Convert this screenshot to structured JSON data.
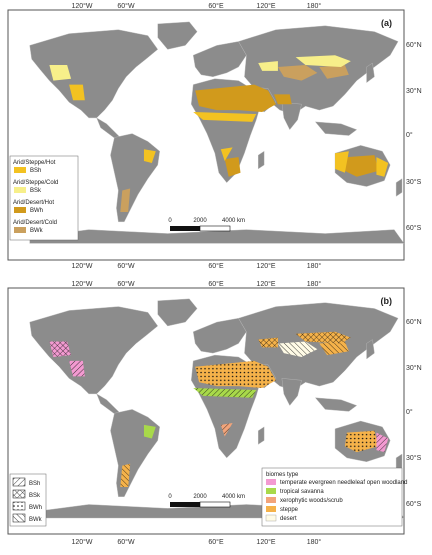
{
  "panels": [
    {
      "label": "(a)",
      "top_lon_labels": [
        "120°W",
        "60°W",
        "60°E",
        "120°E",
        "180°"
      ],
      "bottom_lon_labels": [
        "120°W",
        "60°W",
        "60°E",
        "120°E",
        "180°"
      ],
      "lat_labels": [
        "60°N",
        "30°N",
        "0°",
        "30°S",
        "60°S"
      ],
      "legend": [
        {
          "group": "Arid/Steppe/Hot",
          "code": "BSh",
          "color": "#f3c221"
        },
        {
          "group": "Arid/Steppe/Cold",
          "code": "BSk",
          "color": "#f7ef8a"
        },
        {
          "group": "Arid/Desert/Hot",
          "code": "BWh",
          "color": "#d19a1c"
        },
        {
          "group": "Arid/Desert/Cold",
          "code": "BWk",
          "color": "#caa05e"
        }
      ],
      "scalebar": {
        "labels": [
          "0",
          "2000",
          "4000 km"
        ]
      }
    },
    {
      "label": "(b)",
      "top_lon_labels": [
        "120°W",
        "60°W",
        "60°E",
        "120°E",
        "180°"
      ],
      "bottom_lon_labels": [
        "120°W",
        "60°W",
        "60°E",
        "120°E",
        "180°"
      ],
      "lat_labels": [
        "60°N",
        "30°N",
        "0°",
        "30°S",
        "60°S"
      ],
      "pattern_legend": [
        {
          "code": "BSh",
          "pattern": "diagonal-hatch"
        },
        {
          "code": "BSk",
          "pattern": "cross-hatch"
        },
        {
          "code": "BWh",
          "pattern": "dots"
        },
        {
          "code": "BWk",
          "pattern": "backslash-hatch"
        }
      ],
      "biome_legend": {
        "title": "biomes type",
        "items": [
          {
            "label": "temperate evergreen needleleaf open woodland",
            "color": "#f39ad1"
          },
          {
            "label": "tropical savanna",
            "color": "#a8d94a"
          },
          {
            "label": "xerophytic woods/scrub",
            "color": "#f2a47a"
          },
          {
            "label": "steppe",
            "color": "#f5b24a"
          },
          {
            "label": "desert",
            "color": "#fffbe6"
          }
        ]
      },
      "scalebar": {
        "labels": [
          "0",
          "2000",
          "4000 km"
        ]
      }
    }
  ]
}
